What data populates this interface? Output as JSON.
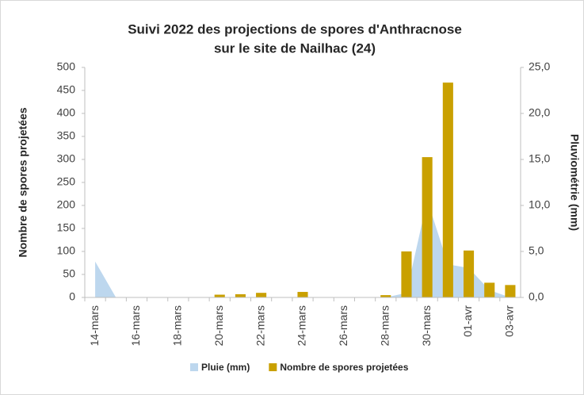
{
  "chart_data": {
    "type": "bar_area",
    "title": [
      "Suivi 2022 des projections de spores d'Anthracnose",
      "sur le site de Nailhac (24)"
    ],
    "y_label": "Nombre de spores projetées",
    "y2_label": "Pluviométrie (mm)",
    "categories": [
      "14-mars",
      null,
      "16-mars",
      null,
      "18-mars",
      null,
      "20-mars",
      null,
      "22-mars",
      null,
      "24-mars",
      null,
      "26-mars",
      null,
      "28-mars",
      null,
      "30-mars",
      null,
      "01-avr",
      null,
      "03-avr"
    ],
    "series": [
      {
        "name": "Pluie (mm)",
        "type": "area",
        "axis": "y2",
        "color": "#bdd7ee",
        "values": [
          3.9,
          0,
          0,
          0,
          0,
          0,
          0,
          0,
          0,
          0,
          0,
          0,
          0,
          0,
          0,
          0.5,
          10.6,
          3.6,
          3.2,
          0.8,
          0
        ]
      },
      {
        "name": "Nombre de spores projetées",
        "type": "bar",
        "axis": "y",
        "color": "#c9a000",
        "values": [
          0,
          0,
          0,
          0,
          0,
          0,
          6,
          7,
          10,
          0,
          12,
          0,
          0,
          0,
          5,
          100,
          305,
          467,
          102,
          32,
          27
        ]
      }
    ],
    "ylim": [
      0,
      500
    ],
    "yticks": [
      0,
      50,
      100,
      150,
      200,
      250,
      300,
      350,
      400,
      450,
      500
    ],
    "y2lim": [
      0,
      25
    ],
    "y2ticks": [
      {
        "value": 0,
        "label": "0,0"
      },
      {
        "value": 5,
        "label": "5,0"
      },
      {
        "value": 10,
        "label": "10,0"
      },
      {
        "value": 15,
        "label": "15,0"
      },
      {
        "value": 20,
        "label": "20,0"
      },
      {
        "value": 25,
        "label": "25,0"
      }
    ],
    "legend": "bottom"
  }
}
